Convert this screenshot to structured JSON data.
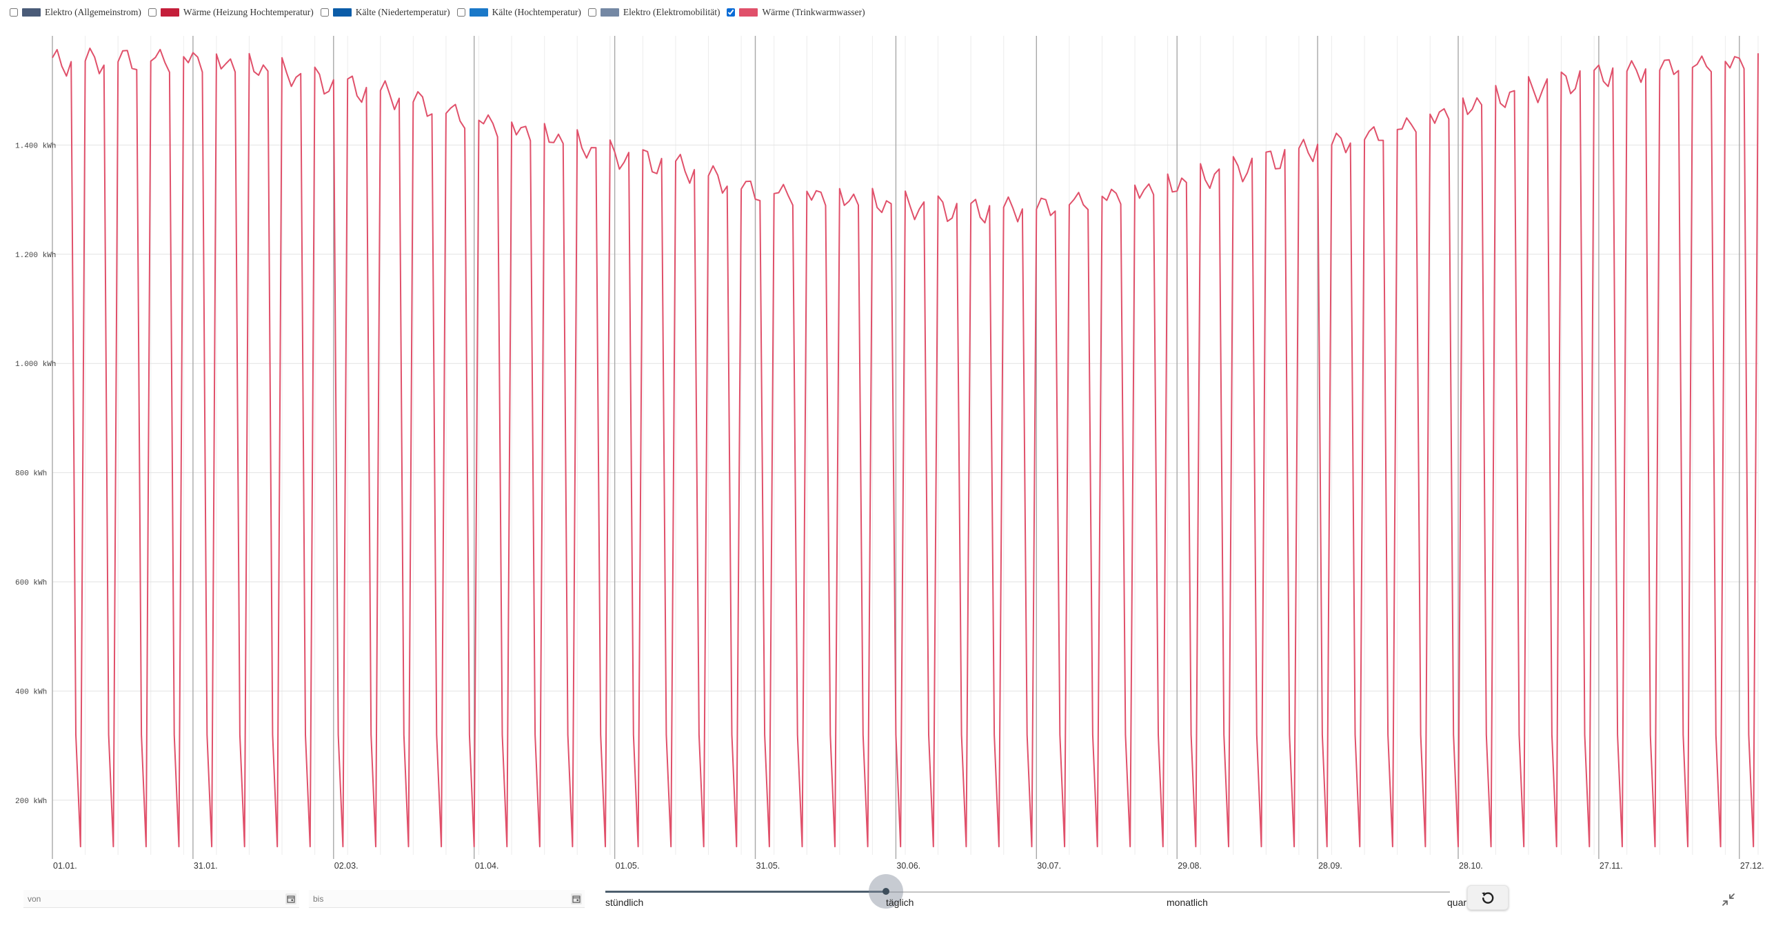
{
  "legend": [
    {
      "label": "Elektro (Allgemeinstrom)",
      "color": "#4a5b78",
      "checked": false
    },
    {
      "label": "Wärme (Heizung Hochtemperatur)",
      "color": "#c41e3a",
      "checked": false
    },
    {
      "label": "Kälte (Niedertemperatur)",
      "color": "#0b5ca8",
      "checked": false
    },
    {
      "label": "Kälte (Hochtemperatur)",
      "color": "#1a78c8",
      "checked": false
    },
    {
      "label": "Elektro (Elektromobilität)",
      "color": "#7488a4",
      "checked": false
    },
    {
      "label": "Wärme (Trinkwarmwasser)",
      "color": "#e0506a",
      "checked": true
    }
  ],
  "controls": {
    "from_placeholder": "von",
    "to_placeholder": "bis",
    "interval_marks": [
      "stündlich",
      "täglich",
      "monatlich",
      "quar"
    ],
    "selected_interval": "täglich",
    "calendar_icon": "calendar-icon",
    "reset_icon": "reset-icon",
    "collapse_icon": "collapse-icon"
  },
  "chart_data": {
    "type": "line",
    "x_axis": "date (daily, one year)",
    "x_ticks": [
      "01.01.",
      "31.01.",
      "02.03.",
      "01.04.",
      "01.05.",
      "31.05.",
      "30.06.",
      "30.07.",
      "29.08.",
      "28.09.",
      "28.10.",
      "27.11.",
      "27.12."
    ],
    "x_tick_day_index": [
      0,
      30,
      60,
      90,
      120,
      150,
      180,
      210,
      240,
      270,
      300,
      330,
      360
    ],
    "y_ticks": [
      "200 kWh",
      "400 kWh",
      "600 kWh",
      "800 kWh",
      "1.000 kWh",
      "1.200 kWh",
      "1.400 kWh"
    ],
    "y_tick_values": [
      200,
      400,
      600,
      800,
      1000,
      1200,
      1400
    ],
    "ylim": [
      100,
      1600
    ],
    "grid": true,
    "series": [
      {
        "name": "Wärme (Trinkwarmwasser)",
        "color": "#e0506a",
        "weekday_envelope": {
          "day_index": [
            0,
            14,
            30,
            45,
            60,
            75,
            90,
            105,
            120,
            135,
            150,
            165,
            180,
            195,
            210,
            225,
            240,
            255,
            270,
            285,
            300,
            315,
            330,
            345,
            364
          ],
          "values": [
            1550,
            1560,
            1560,
            1540,
            1510,
            1490,
            1450,
            1420,
            1380,
            1360,
            1320,
            1310,
            1290,
            1280,
            1290,
            1310,
            1330,
            1360,
            1400,
            1430,
            1470,
            1500,
            1530,
            1550,
            1560
          ]
        },
        "weekend_values": [
          320,
          115
        ]
      }
    ]
  }
}
